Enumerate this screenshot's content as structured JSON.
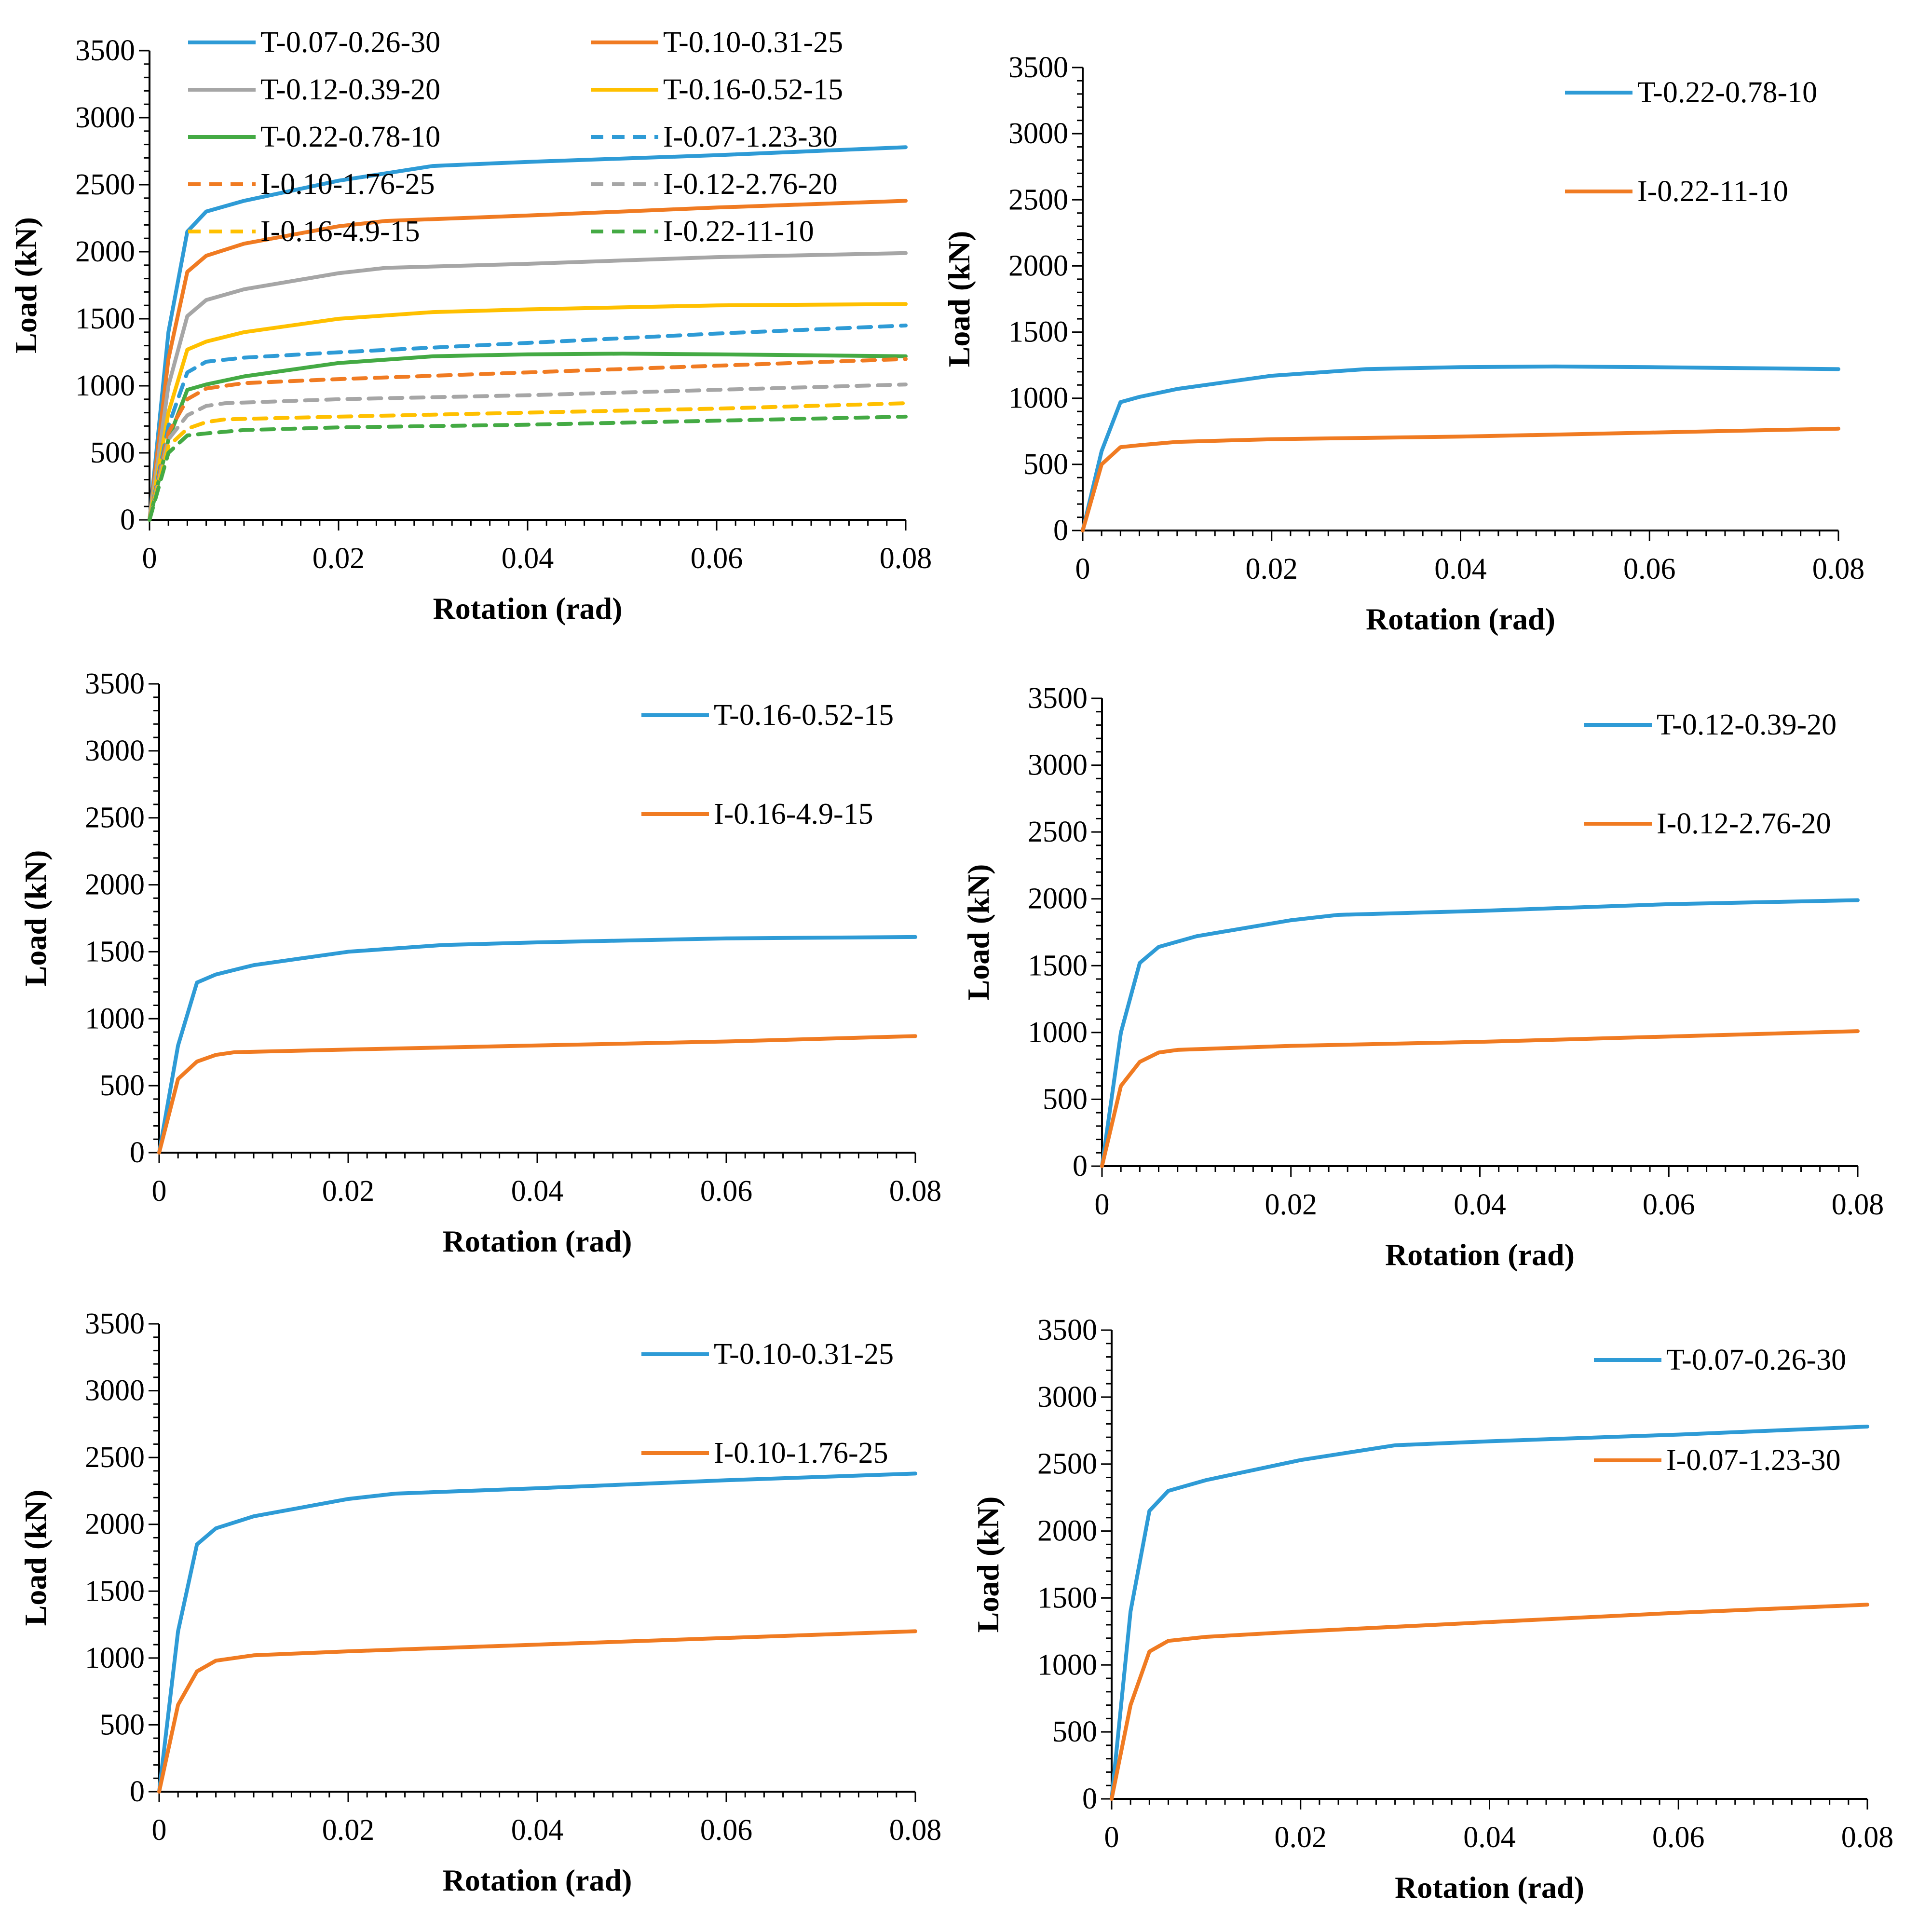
{
  "colors": {
    "blue": "#2e9bd6",
    "orange": "#f07b22",
    "gray": "#a6a6a6",
    "yellow": "#ffc000",
    "green": "#44aa44"
  },
  "chart_data": [
    {
      "type": "line",
      "panel": "top-left",
      "xlabel": "Rotation (rad)",
      "ylabel": "Load (kN)",
      "xlim": [
        0,
        0.08
      ],
      "ylim": [
        0,
        3500
      ],
      "xticks": [
        "0",
        "0.02",
        "0.04",
        "0.06",
        "0.08"
      ],
      "yticks": [
        "0",
        "500",
        "1000",
        "1500",
        "2000",
        "2500",
        "3000",
        "3500"
      ],
      "legend_position": "top-left",
      "legend_columns": 2,
      "series": [
        {
          "name": "T-0.07-0.26-30",
          "color": "blue",
          "dashed": false,
          "x": [
            0,
            0.002,
            0.004,
            0.006,
            0.01,
            0.02,
            0.03,
            0.04,
            0.06,
            0.08
          ],
          "y": [
            0,
            1400,
            2150,
            2300,
            2380,
            2530,
            2640,
            2670,
            2720,
            2780
          ]
        },
        {
          "name": "T-0.10-0.31-25",
          "color": "orange",
          "dashed": false,
          "x": [
            0,
            0.002,
            0.004,
            0.006,
            0.01,
            0.02,
            0.025,
            0.04,
            0.06,
            0.08
          ],
          "y": [
            0,
            1200,
            1850,
            1970,
            2060,
            2190,
            2230,
            2270,
            2330,
            2380
          ]
        },
        {
          "name": "T-0.12-0.39-20",
          "color": "gray",
          "dashed": false,
          "x": [
            0,
            0.002,
            0.004,
            0.006,
            0.01,
            0.02,
            0.025,
            0.04,
            0.06,
            0.08
          ],
          "y": [
            0,
            1000,
            1520,
            1640,
            1720,
            1840,
            1880,
            1910,
            1960,
            1990
          ]
        },
        {
          "name": "T-0.16-0.52-15",
          "color": "yellow",
          "dashed": false,
          "x": [
            0,
            0.002,
            0.004,
            0.006,
            0.01,
            0.02,
            0.03,
            0.04,
            0.06,
            0.08
          ],
          "y": [
            0,
            800,
            1270,
            1330,
            1400,
            1500,
            1550,
            1570,
            1600,
            1610
          ]
        },
        {
          "name": "T-0.22-0.78-10",
          "color": "green",
          "dashed": false,
          "x": [
            0,
            0.002,
            0.004,
            0.006,
            0.01,
            0.02,
            0.03,
            0.04,
            0.05,
            0.06,
            0.08
          ],
          "y": [
            0,
            600,
            970,
            1010,
            1070,
            1170,
            1220,
            1235,
            1240,
            1235,
            1220
          ]
        },
        {
          "name": "I-0.07-1.23-30",
          "color": "blue",
          "dashed": true,
          "x": [
            0,
            0.002,
            0.004,
            0.006,
            0.01,
            0.02,
            0.04,
            0.06,
            0.08
          ],
          "y": [
            0,
            700,
            1100,
            1180,
            1210,
            1250,
            1320,
            1390,
            1450
          ]
        },
        {
          "name": "I-0.10-1.76-25",
          "color": "orange",
          "dashed": true,
          "x": [
            0,
            0.002,
            0.004,
            0.006,
            0.01,
            0.02,
            0.04,
            0.06,
            0.08
          ],
          "y": [
            0,
            650,
            900,
            980,
            1020,
            1050,
            1100,
            1150,
            1200
          ]
        },
        {
          "name": "I-0.12-2.76-20",
          "color": "gray",
          "dashed": true,
          "x": [
            0,
            0.002,
            0.004,
            0.006,
            0.008,
            0.02,
            0.04,
            0.06,
            0.08
          ],
          "y": [
            0,
            600,
            780,
            850,
            870,
            900,
            930,
            970,
            1010
          ]
        },
        {
          "name": "I-0.16-4.9-15",
          "color": "yellow",
          "dashed": true,
          "x": [
            0,
            0.002,
            0.004,
            0.006,
            0.008,
            0.02,
            0.04,
            0.06,
            0.08
          ],
          "y": [
            0,
            550,
            680,
            730,
            750,
            770,
            800,
            830,
            870
          ]
        },
        {
          "name": "I-0.22-11-10",
          "color": "green",
          "dashed": true,
          "x": [
            0,
            0.002,
            0.004,
            0.006,
            0.01,
            0.02,
            0.04,
            0.06,
            0.08
          ],
          "y": [
            0,
            500,
            630,
            645,
            670,
            690,
            710,
            740,
            770
          ]
        }
      ]
    },
    {
      "type": "line",
      "panel": "top-right",
      "xlabel": "Rotation (rad)",
      "ylabel": "Load (kN)",
      "xlim": [
        0,
        0.08
      ],
      "ylim": [
        0,
        3500
      ],
      "xticks": [
        "0",
        "0.02",
        "0.04",
        "0.06",
        "0.08"
      ],
      "yticks": [
        "0",
        "500",
        "1000",
        "1500",
        "2000",
        "2500",
        "3000",
        "3500"
      ],
      "legend_position": "top-right",
      "legend_columns": 1,
      "series": [
        {
          "name": "T-0.22-0.78-10",
          "color": "blue",
          "dashed": false,
          "x": [
            0,
            0.002,
            0.004,
            0.006,
            0.01,
            0.02,
            0.03,
            0.04,
            0.05,
            0.06,
            0.08
          ],
          "y": [
            0,
            600,
            970,
            1010,
            1070,
            1170,
            1220,
            1235,
            1240,
            1235,
            1220
          ]
        },
        {
          "name": "I-0.22-11-10",
          "color": "orange",
          "dashed": false,
          "x": [
            0,
            0.002,
            0.004,
            0.006,
            0.01,
            0.02,
            0.04,
            0.06,
            0.08
          ],
          "y": [
            0,
            500,
            630,
            645,
            670,
            690,
            710,
            740,
            770
          ]
        }
      ]
    },
    {
      "type": "line",
      "panel": "middle-left",
      "xlabel": "Rotation (rad)",
      "ylabel": "Load (kN)",
      "xlim": [
        0,
        0.08
      ],
      "ylim": [
        0,
        3500
      ],
      "xticks": [
        "0",
        "0.02",
        "0.04",
        "0.06",
        "0.08"
      ],
      "yticks": [
        "0",
        "500",
        "1000",
        "1500",
        "2000",
        "2500",
        "3000",
        "3500"
      ],
      "legend_position": "top-right",
      "legend_columns": 1,
      "series": [
        {
          "name": "T-0.16-0.52-15",
          "color": "blue",
          "dashed": false,
          "x": [
            0,
            0.002,
            0.004,
            0.006,
            0.01,
            0.02,
            0.03,
            0.04,
            0.06,
            0.08
          ],
          "y": [
            0,
            800,
            1270,
            1330,
            1400,
            1500,
            1550,
            1570,
            1600,
            1610
          ]
        },
        {
          "name": "I-0.16-4.9-15",
          "color": "orange",
          "dashed": false,
          "x": [
            0,
            0.002,
            0.004,
            0.006,
            0.008,
            0.02,
            0.04,
            0.06,
            0.08
          ],
          "y": [
            0,
            550,
            680,
            730,
            750,
            770,
            800,
            830,
            870
          ]
        }
      ]
    },
    {
      "type": "line",
      "panel": "middle-right",
      "xlabel": "Rotation (rad)",
      "ylabel": "Load (kN)",
      "xlim": [
        0,
        0.08
      ],
      "ylim": [
        0,
        3500
      ],
      "xticks": [
        "0",
        "0.02",
        "0.04",
        "0.06",
        "0.08"
      ],
      "yticks": [
        "0",
        "500",
        "1000",
        "1500",
        "2000",
        "2500",
        "3000",
        "3500"
      ],
      "legend_position": "top-right",
      "legend_columns": 1,
      "series": [
        {
          "name": "T-0.12-0.39-20",
          "color": "blue",
          "dashed": false,
          "x": [
            0,
            0.002,
            0.004,
            0.006,
            0.01,
            0.02,
            0.025,
            0.04,
            0.06,
            0.08
          ],
          "y": [
            0,
            1000,
            1520,
            1640,
            1720,
            1840,
            1880,
            1910,
            1960,
            1990
          ]
        },
        {
          "name": "I-0.12-2.76-20",
          "color": "orange",
          "dashed": false,
          "x": [
            0,
            0.002,
            0.004,
            0.006,
            0.008,
            0.02,
            0.04,
            0.06,
            0.08
          ],
          "y": [
            0,
            600,
            780,
            850,
            870,
            900,
            930,
            970,
            1010
          ]
        }
      ]
    },
    {
      "type": "line",
      "panel": "bottom-left",
      "xlabel": "Rotation (rad)",
      "ylabel": "Load (kN)",
      "xlim": [
        0,
        0.08
      ],
      "ylim": [
        0,
        3500
      ],
      "xticks": [
        "0",
        "0.02",
        "0.04",
        "0.06",
        "0.08"
      ],
      "yticks": [
        "0",
        "500",
        "1000",
        "1500",
        "2000",
        "2500",
        "3000",
        "3500"
      ],
      "legend_position": "top-right",
      "legend_columns": 1,
      "series": [
        {
          "name": "T-0.10-0.31-25",
          "color": "blue",
          "dashed": false,
          "x": [
            0,
            0.002,
            0.004,
            0.006,
            0.01,
            0.02,
            0.025,
            0.04,
            0.06,
            0.08
          ],
          "y": [
            0,
            1200,
            1850,
            1970,
            2060,
            2190,
            2230,
            2270,
            2330,
            2380
          ]
        },
        {
          "name": "I-0.10-1.76-25",
          "color": "orange",
          "dashed": false,
          "x": [
            0,
            0.002,
            0.004,
            0.006,
            0.01,
            0.02,
            0.04,
            0.06,
            0.08
          ],
          "y": [
            0,
            650,
            900,
            980,
            1020,
            1050,
            1100,
            1150,
            1200
          ]
        }
      ]
    },
    {
      "type": "line",
      "panel": "bottom-right",
      "xlabel": "Rotation (rad)",
      "ylabel": "Load (kN)",
      "xlim": [
        0,
        0.08
      ],
      "ylim": [
        0,
        3500
      ],
      "xticks": [
        "0",
        "0.02",
        "0.04",
        "0.06",
        "0.08"
      ],
      "yticks": [
        "0",
        "500",
        "1000",
        "1500",
        "2000",
        "2500",
        "3000",
        "3500"
      ],
      "legend_position": "top-right",
      "legend_columns": 1,
      "series": [
        {
          "name": "T-0.07-0.26-30",
          "color": "blue",
          "dashed": false,
          "x": [
            0,
            0.002,
            0.004,
            0.006,
            0.01,
            0.02,
            0.03,
            0.04,
            0.06,
            0.08
          ],
          "y": [
            0,
            1400,
            2150,
            2300,
            2380,
            2530,
            2640,
            2670,
            2720,
            2780
          ]
        },
        {
          "name": "I-0.07-1.23-30",
          "color": "orange",
          "dashed": false,
          "x": [
            0,
            0.002,
            0.004,
            0.006,
            0.01,
            0.02,
            0.04,
            0.06,
            0.08
          ],
          "y": [
            0,
            700,
            1100,
            1180,
            1210,
            1250,
            1320,
            1390,
            1450
          ]
        }
      ]
    }
  ]
}
